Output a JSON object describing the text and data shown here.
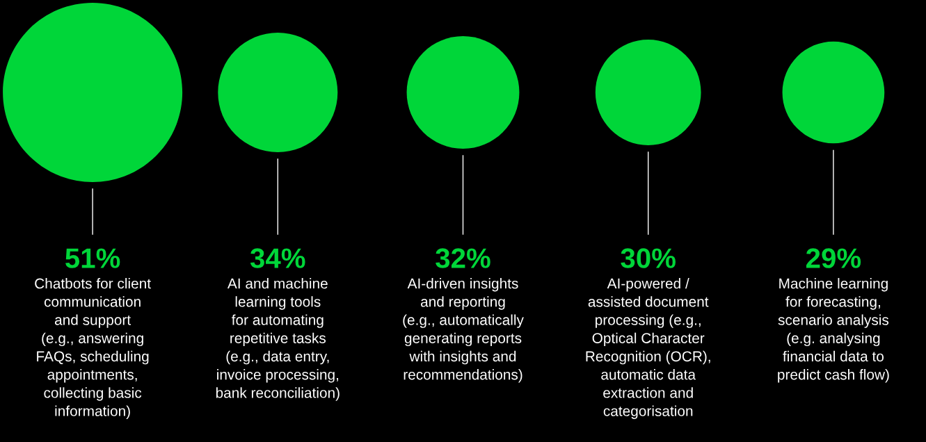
{
  "chart_data": {
    "type": "other",
    "categories": [
      "Chatbots for client\ncommunication\nand support\n(e.g., answering\nFAQs, scheduling\nappointments,\ncollecting basic\ninformation)",
      "AI and machine\nlearning tools\nfor automating\nrepetitive tasks\n(e.g., data entry,\ninvoice processing,\nbank reconciliation)",
      "AI-driven insights\nand reporting\n(e.g., automatically\ngenerating reports\nwith insights and\nrecommendations)",
      "AI-powered /\nassisted document\nprocessing (e.g.,\nOptical Character\nRecognition (OCR),\nautomatic data\nextraction and\ncategorisation",
      "Machine learning\nfor forecasting,\nscenario analysis\n(e.g. analysing\nfinancial data to\npredict cash flow)"
    ],
    "values": [
      51,
      34,
      32,
      30,
      29
    ],
    "value_labels": [
      "51%",
      "34%",
      "32%",
      "30%",
      "29%"
    ],
    "color": "#00d639"
  }
}
